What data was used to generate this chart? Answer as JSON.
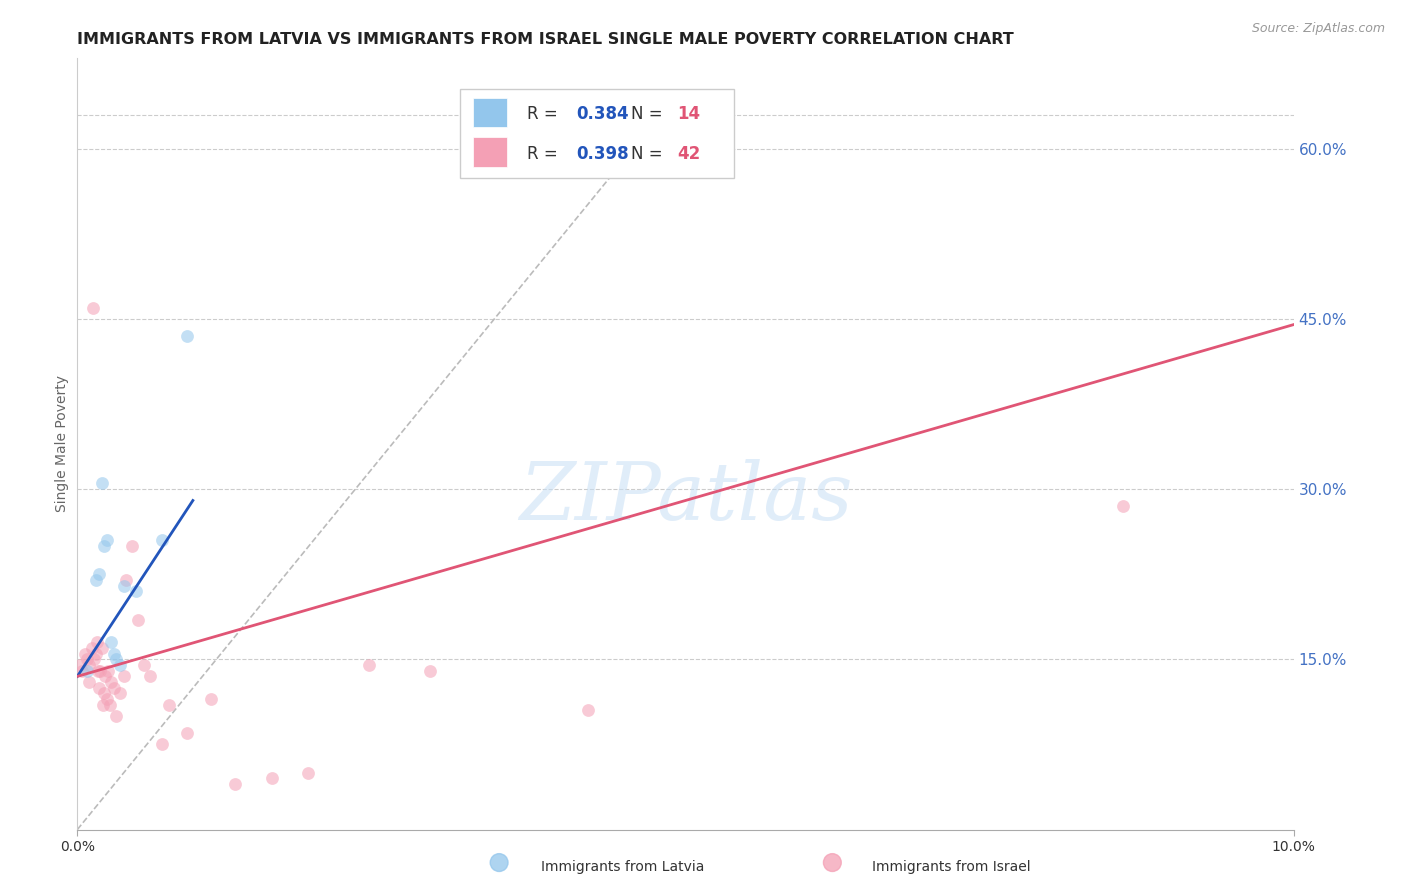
{
  "title": "IMMIGRANTS FROM LATVIA VS IMMIGRANTS FROM ISRAEL SINGLE MALE POVERTY CORRELATION CHART",
  "source": "Source: ZipAtlas.com",
  "ylabel": "Single Male Poverty",
  "ylabel_color": "#666666",
  "watermark_text": "ZIPatlas",
  "xlim": [
    0.0,
    10.0
  ],
  "ylim": [
    0.0,
    68.0
  ],
  "ytick_top": 63.0,
  "yticks_right": [
    15.0,
    30.0,
    45.0,
    60.0
  ],
  "ytick_right_labels": [
    "15.0%",
    "30.0%",
    "45.0%",
    "60.0%"
  ],
  "right_tick_color": "#4472C4",
  "grid_color": "#cccccc",
  "background_color": "#ffffff",
  "latvia_x": [
    0.08,
    0.15,
    0.18,
    0.22,
    0.24,
    0.28,
    0.3,
    0.32,
    0.35,
    0.38,
    0.48,
    0.7,
    0.9,
    0.2
  ],
  "latvia_y": [
    14.0,
    22.0,
    22.5,
    25.0,
    25.5,
    16.5,
    15.5,
    15.0,
    14.5,
    21.5,
    21.0,
    25.5,
    43.5,
    30.5
  ],
  "latvia_color": "#93C6EC",
  "latvia_label": "Immigrants from Latvia",
  "latvia_R": "0.384",
  "latvia_N": "14",
  "israel_x": [
    0.02,
    0.04,
    0.06,
    0.08,
    0.1,
    0.1,
    0.12,
    0.14,
    0.15,
    0.16,
    0.17,
    0.18,
    0.19,
    0.2,
    0.21,
    0.22,
    0.23,
    0.24,
    0.25,
    0.27,
    0.28,
    0.3,
    0.32,
    0.35,
    0.38,
    0.4,
    0.45,
    0.5,
    0.55,
    0.6,
    0.7,
    0.75,
    0.9,
    1.1,
    1.3,
    1.6,
    1.9,
    2.4,
    2.9,
    4.2,
    8.6,
    0.13
  ],
  "israel_y": [
    14.5,
    14.0,
    15.5,
    15.0,
    14.5,
    13.0,
    16.0,
    15.0,
    15.5,
    16.5,
    14.0,
    12.5,
    14.0,
    16.0,
    11.0,
    12.0,
    13.5,
    11.5,
    14.0,
    11.0,
    13.0,
    12.5,
    10.0,
    12.0,
    13.5,
    22.0,
    25.0,
    18.5,
    14.5,
    13.5,
    7.5,
    11.0,
    8.5,
    11.5,
    4.0,
    4.5,
    5.0,
    14.5,
    14.0,
    10.5,
    28.5,
    46.0
  ],
  "israel_color": "#F4A0B5",
  "israel_label": "Immigrants from Israel",
  "israel_R": "0.398",
  "israel_N": "42",
  "latvia_trend_x": [
    0.0,
    0.95
  ],
  "latvia_trend_y": [
    13.5,
    29.0
  ],
  "israel_trend_x": [
    0.0,
    10.0
  ],
  "israel_trend_y": [
    13.5,
    44.5
  ],
  "reference_line_x": [
    0.0,
    4.8
  ],
  "reference_line_y": [
    0.0,
    63.0
  ],
  "latvia_trend_color": "#2255BB",
  "israel_trend_color": "#E05575",
  "reference_line_color": "#bbbbbb",
  "marker_size": 85,
  "marker_alpha": 0.55,
  "legend_R_color": "#2255BB",
  "legend_N_color": "#E05575",
  "title_fontsize": 11.5,
  "source_fontsize": 9,
  "ylabel_fontsize": 10,
  "legend_fontsize": 12,
  "tick_label_fontsize": 10
}
